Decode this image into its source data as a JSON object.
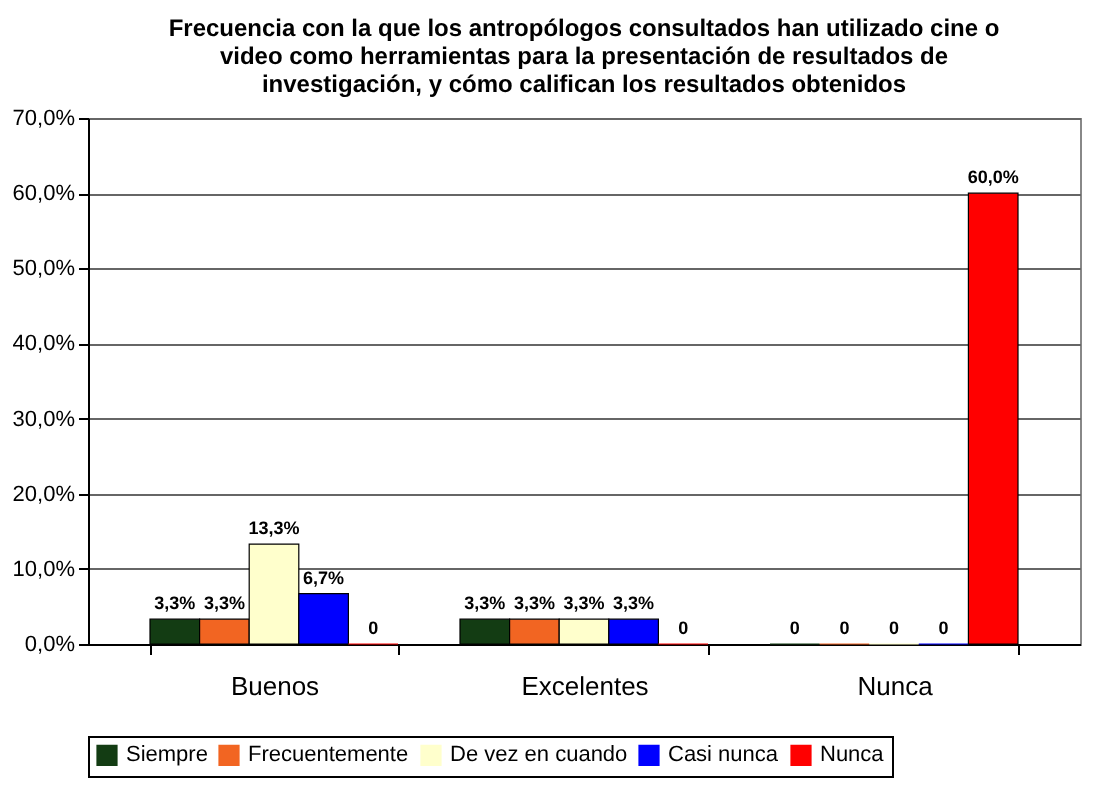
{
  "chart_data": {
    "type": "bar",
    "title": "Frecuencia con la que los antropólogos consultados han utilizado cine o video como herramientas para la presentación de resultados de investigación, y cómo califican los resultados obtenidos",
    "categories": [
      "Buenos",
      "Excelentes",
      "Nunca"
    ],
    "series": [
      {
        "name": "Siempre",
        "color": "#133c13",
        "values": [
          3.3,
          3.3,
          0
        ],
        "value_labels": [
          "3,3%",
          "3,3%",
          "0"
        ]
      },
      {
        "name": "Frecuentemente",
        "color": "#f26522",
        "values": [
          3.3,
          3.3,
          0
        ],
        "value_labels": [
          "3,3%",
          "3,3%",
          "0"
        ]
      },
      {
        "name": "De vez en cuando",
        "color": "#ffffcc",
        "values": [
          13.3,
          3.3,
          0
        ],
        "value_labels": [
          "13,3%",
          "3,3%",
          "0"
        ]
      },
      {
        "name": "Casi nunca",
        "color": "#0000ff",
        "values": [
          6.7,
          3.3,
          0
        ],
        "value_labels": [
          "6,7%",
          "3,3%",
          "0"
        ]
      },
      {
        "name": "Nunca",
        "color": "#ff0000",
        "values": [
          0,
          0,
          60.0
        ],
        "value_labels": [
          "0",
          "0",
          "60,0%"
        ]
      }
    ],
    "ylim": [
      0,
      70
    ],
    "yticks": [
      {
        "value": 0,
        "label": "0,0%"
      },
      {
        "value": 10,
        "label": "10,0%"
      },
      {
        "value": 20,
        "label": "20,0%"
      },
      {
        "value": 30,
        "label": "30,0%"
      },
      {
        "value": 40,
        "label": "40,0%"
      },
      {
        "value": 50,
        "label": "50,0%"
      },
      {
        "value": 60,
        "label": "60,0%"
      },
      {
        "value": 70,
        "label": "70,0%"
      }
    ],
    "grid": "y",
    "legend": "bottom"
  }
}
